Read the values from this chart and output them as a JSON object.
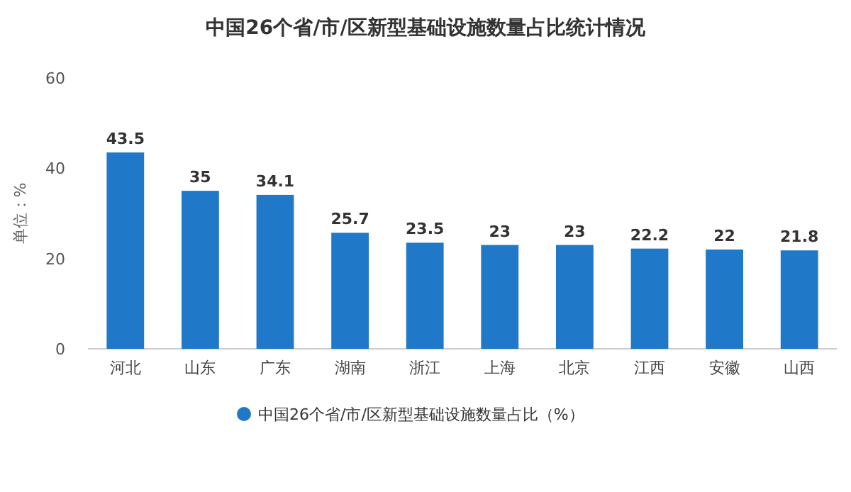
{
  "chart_data": {
    "type": "bar",
    "title": "中国26个省/市/区新型基础设施数量占比统计情况",
    "ylabel": "单位：%",
    "categories": [
      "河北",
      "山东",
      "广东",
      "湖南",
      "浙江",
      "上海",
      "北京",
      "江西",
      "安徽",
      "山西"
    ],
    "series": [
      {
        "name": "中国26个省/市/区新型基础设施数量占比（%）",
        "color": "#1f78c8",
        "values": [
          43.5,
          35,
          34.1,
          25.7,
          23.5,
          23,
          23,
          22.2,
          22,
          21.8
        ]
      }
    ],
    "ylim": [
      0,
      60
    ],
    "yticks": [
      0,
      20,
      40,
      60
    ],
    "data_labels": true,
    "legend": "bottom"
  }
}
